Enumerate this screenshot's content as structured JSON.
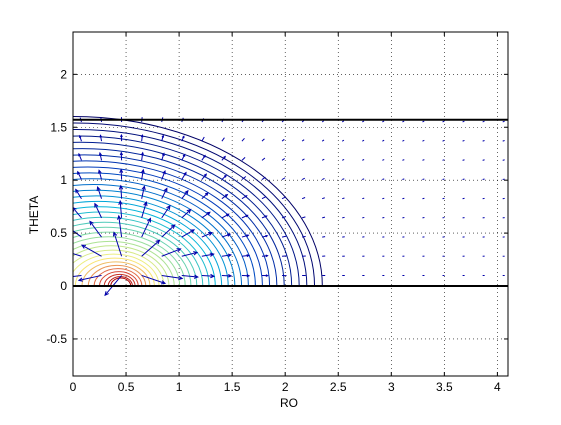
{
  "chart_data": {
    "type": "contour",
    "xlabel": "RO",
    "ylabel": "THETA",
    "xlim": [
      0,
      4.1
    ],
    "ylim": [
      -0.85,
      2.4
    ],
    "xticks": [
      0,
      0.5,
      1,
      1.5,
      2,
      2.5,
      3,
      3.5,
      4
    ],
    "xtick_labels": [
      "0",
      "0.5",
      "1",
      "1.5",
      "2",
      "2.5",
      "3",
      "3.5",
      "4"
    ],
    "yticks": [
      -0.5,
      0,
      0.5,
      1,
      1.5,
      2
    ],
    "ytick_labels": [
      "-0.5",
      "0",
      "0.5",
      "1",
      "1.5",
      "2"
    ],
    "grid": true,
    "grid_style": "dotted",
    "boundary_lines_theta": [
      0,
      1.5708
    ],
    "singularity_center": [
      0.5,
      0.15
    ],
    "contour_outer_radius_ro": 2.35,
    "contour_level_count": 34,
    "quiver_field": {
      "ro_range": [
        0.08,
        4.05
      ],
      "theta_range": [
        0.1,
        1.55
      ],
      "columns": 22,
      "rows": 9,
      "color": "#0000aa"
    },
    "colors": {
      "boundary": "#000000",
      "contour_outer": "#000066",
      "contour_inner": "#b30000",
      "grid": "#000000",
      "arrow": "#0000aa"
    }
  }
}
